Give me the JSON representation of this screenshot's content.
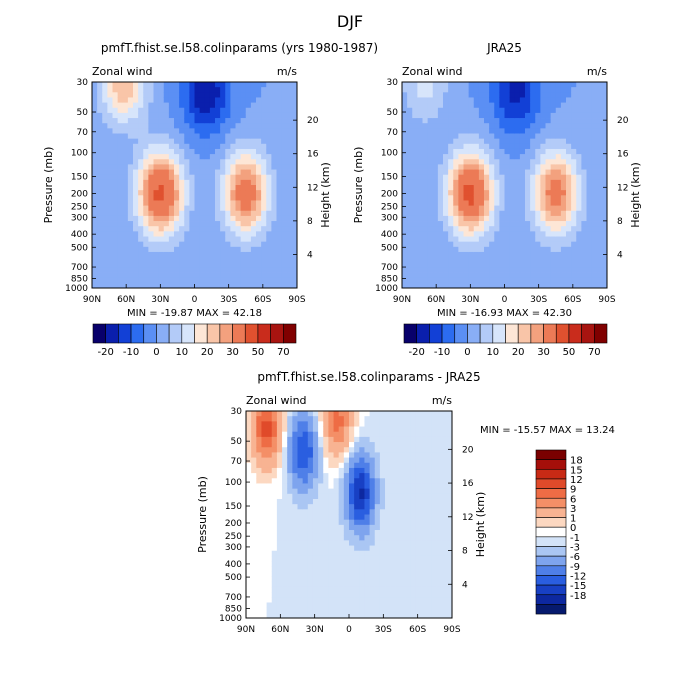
{
  "figure_title": "DJF",
  "chart_data": [
    {
      "type": "heatmap",
      "title": "pmfT.fhist.se.l58.colinparams (yrs 1980-1987)",
      "variable": "Zonal wind",
      "units": "m/s",
      "ylabel": "Pressure (mb)",
      "ylabel_right": "Height (km)",
      "x_ticks": [
        "90N",
        "60N",
        "30N",
        "0",
        "30S",
        "60S",
        "90S"
      ],
      "y_ticks": [
        "30",
        "50",
        "70",
        "100",
        "150",
        "200",
        "250",
        "300",
        "400",
        "500",
        "700",
        "850",
        "1000"
      ],
      "height_ticks": [
        "4",
        "8",
        "12",
        "16",
        "20"
      ],
      "xlim": [
        90,
        -90
      ],
      "ylim": [
        1000,
        30
      ],
      "stats": "MIN = -19.87   MAX =  42.18",
      "min": -19.87,
      "max": 42.18,
      "features": [
        {
          "lat": 30,
          "p": 200,
          "value": 42.18
        },
        {
          "lat": -45,
          "p": 200,
          "value": 35
        },
        {
          "lat": 62,
          "p": 30,
          "value": 25
        },
        {
          "lat": -10,
          "p": 35,
          "value": -19.87
        }
      ]
    },
    {
      "type": "heatmap",
      "title": "JRA25",
      "variable": "Zonal wind",
      "units": "m/s",
      "ylabel": "Pressure (mb)",
      "ylabel_right": "Height (km)",
      "x_ticks": [
        "90N",
        "60N",
        "30N",
        "0",
        "30S",
        "60S",
        "90S"
      ],
      "y_ticks": [
        "30",
        "50",
        "70",
        "100",
        "150",
        "200",
        "250",
        "300",
        "400",
        "500",
        "700",
        "850",
        "1000"
      ],
      "height_ticks": [
        "4",
        "8",
        "12",
        "16",
        "20"
      ],
      "xlim": [
        90,
        -90
      ],
      "ylim": [
        1000,
        30
      ],
      "stats": "MIN = -16.93   MAX =  42.30",
      "min": -16.93,
      "max": 42.3,
      "features": [
        {
          "lat": 30,
          "p": 200,
          "value": 42.3
        },
        {
          "lat": -45,
          "p": 200,
          "value": 34
        },
        {
          "lat": 70,
          "p": 30,
          "value": 12
        },
        {
          "lat": -10,
          "p": 35,
          "value": -16.93
        }
      ]
    },
    {
      "type": "heatmap",
      "title": "pmfT.fhist.se.l58.colinparams - JRA25",
      "variable": "Zonal wind",
      "units": "m/s",
      "ylabel": "Pressure (mb)",
      "ylabel_right": "Height (km)",
      "x_ticks": [
        "90N",
        "60N",
        "30N",
        "0",
        "30S",
        "60S",
        "90S"
      ],
      "y_ticks": [
        "30",
        "50",
        "70",
        "100",
        "150",
        "200",
        "250",
        "300",
        "400",
        "500",
        "700",
        "850",
        "1000"
      ],
      "height_ticks": [
        "4",
        "8",
        "12",
        "16",
        "20"
      ],
      "xlim": [
        90,
        -90
      ],
      "ylim": [
        1000,
        30
      ],
      "stats": "MIN = -15.57   MAX =  13.24",
      "min": -15.57,
      "max": 13.24,
      "features": [
        {
          "lat": 72,
          "p": 40,
          "value": 13.24
        },
        {
          "lat": 10,
          "p": 35,
          "value": 10
        },
        {
          "lat": 40,
          "p": 60,
          "value": -12
        },
        {
          "lat": -10,
          "p": 120,
          "value": -15.57
        }
      ]
    }
  ],
  "colorbar_top": {
    "labels": [
      "-20",
      "-10",
      "0",
      "10",
      "20",
      "30",
      "50",
      "70"
    ],
    "colors": [
      "#08006b",
      "#0a1fad",
      "#1240d6",
      "#2c6cf0",
      "#5b8ff4",
      "#89aef6",
      "#b3cbf8",
      "#d7e5fb",
      "#fde6d6",
      "#f9c5a8",
      "#f3a17e",
      "#ec7a56",
      "#e0512f",
      "#c92c1c",
      "#a81410",
      "#800000"
    ]
  },
  "colorbar_diff": {
    "labels": [
      "18",
      "15",
      "12",
      "9",
      "6",
      "3",
      "1",
      "0",
      "-1",
      "-3",
      "-6",
      "-9",
      "-12",
      "-15",
      "-18"
    ],
    "colors": [
      "#7a0000",
      "#a50f0a",
      "#c82a15",
      "#e04a2a",
      "#ee6c45",
      "#f48f67",
      "#f8b392",
      "#fcd8c1",
      "#ffffff",
      "#d3e3f8",
      "#aac6f3",
      "#7ea4ee",
      "#4f7fe8",
      "#2a5ee0",
      "#1840c4",
      "#0d28a0",
      "#061a6e"
    ]
  }
}
